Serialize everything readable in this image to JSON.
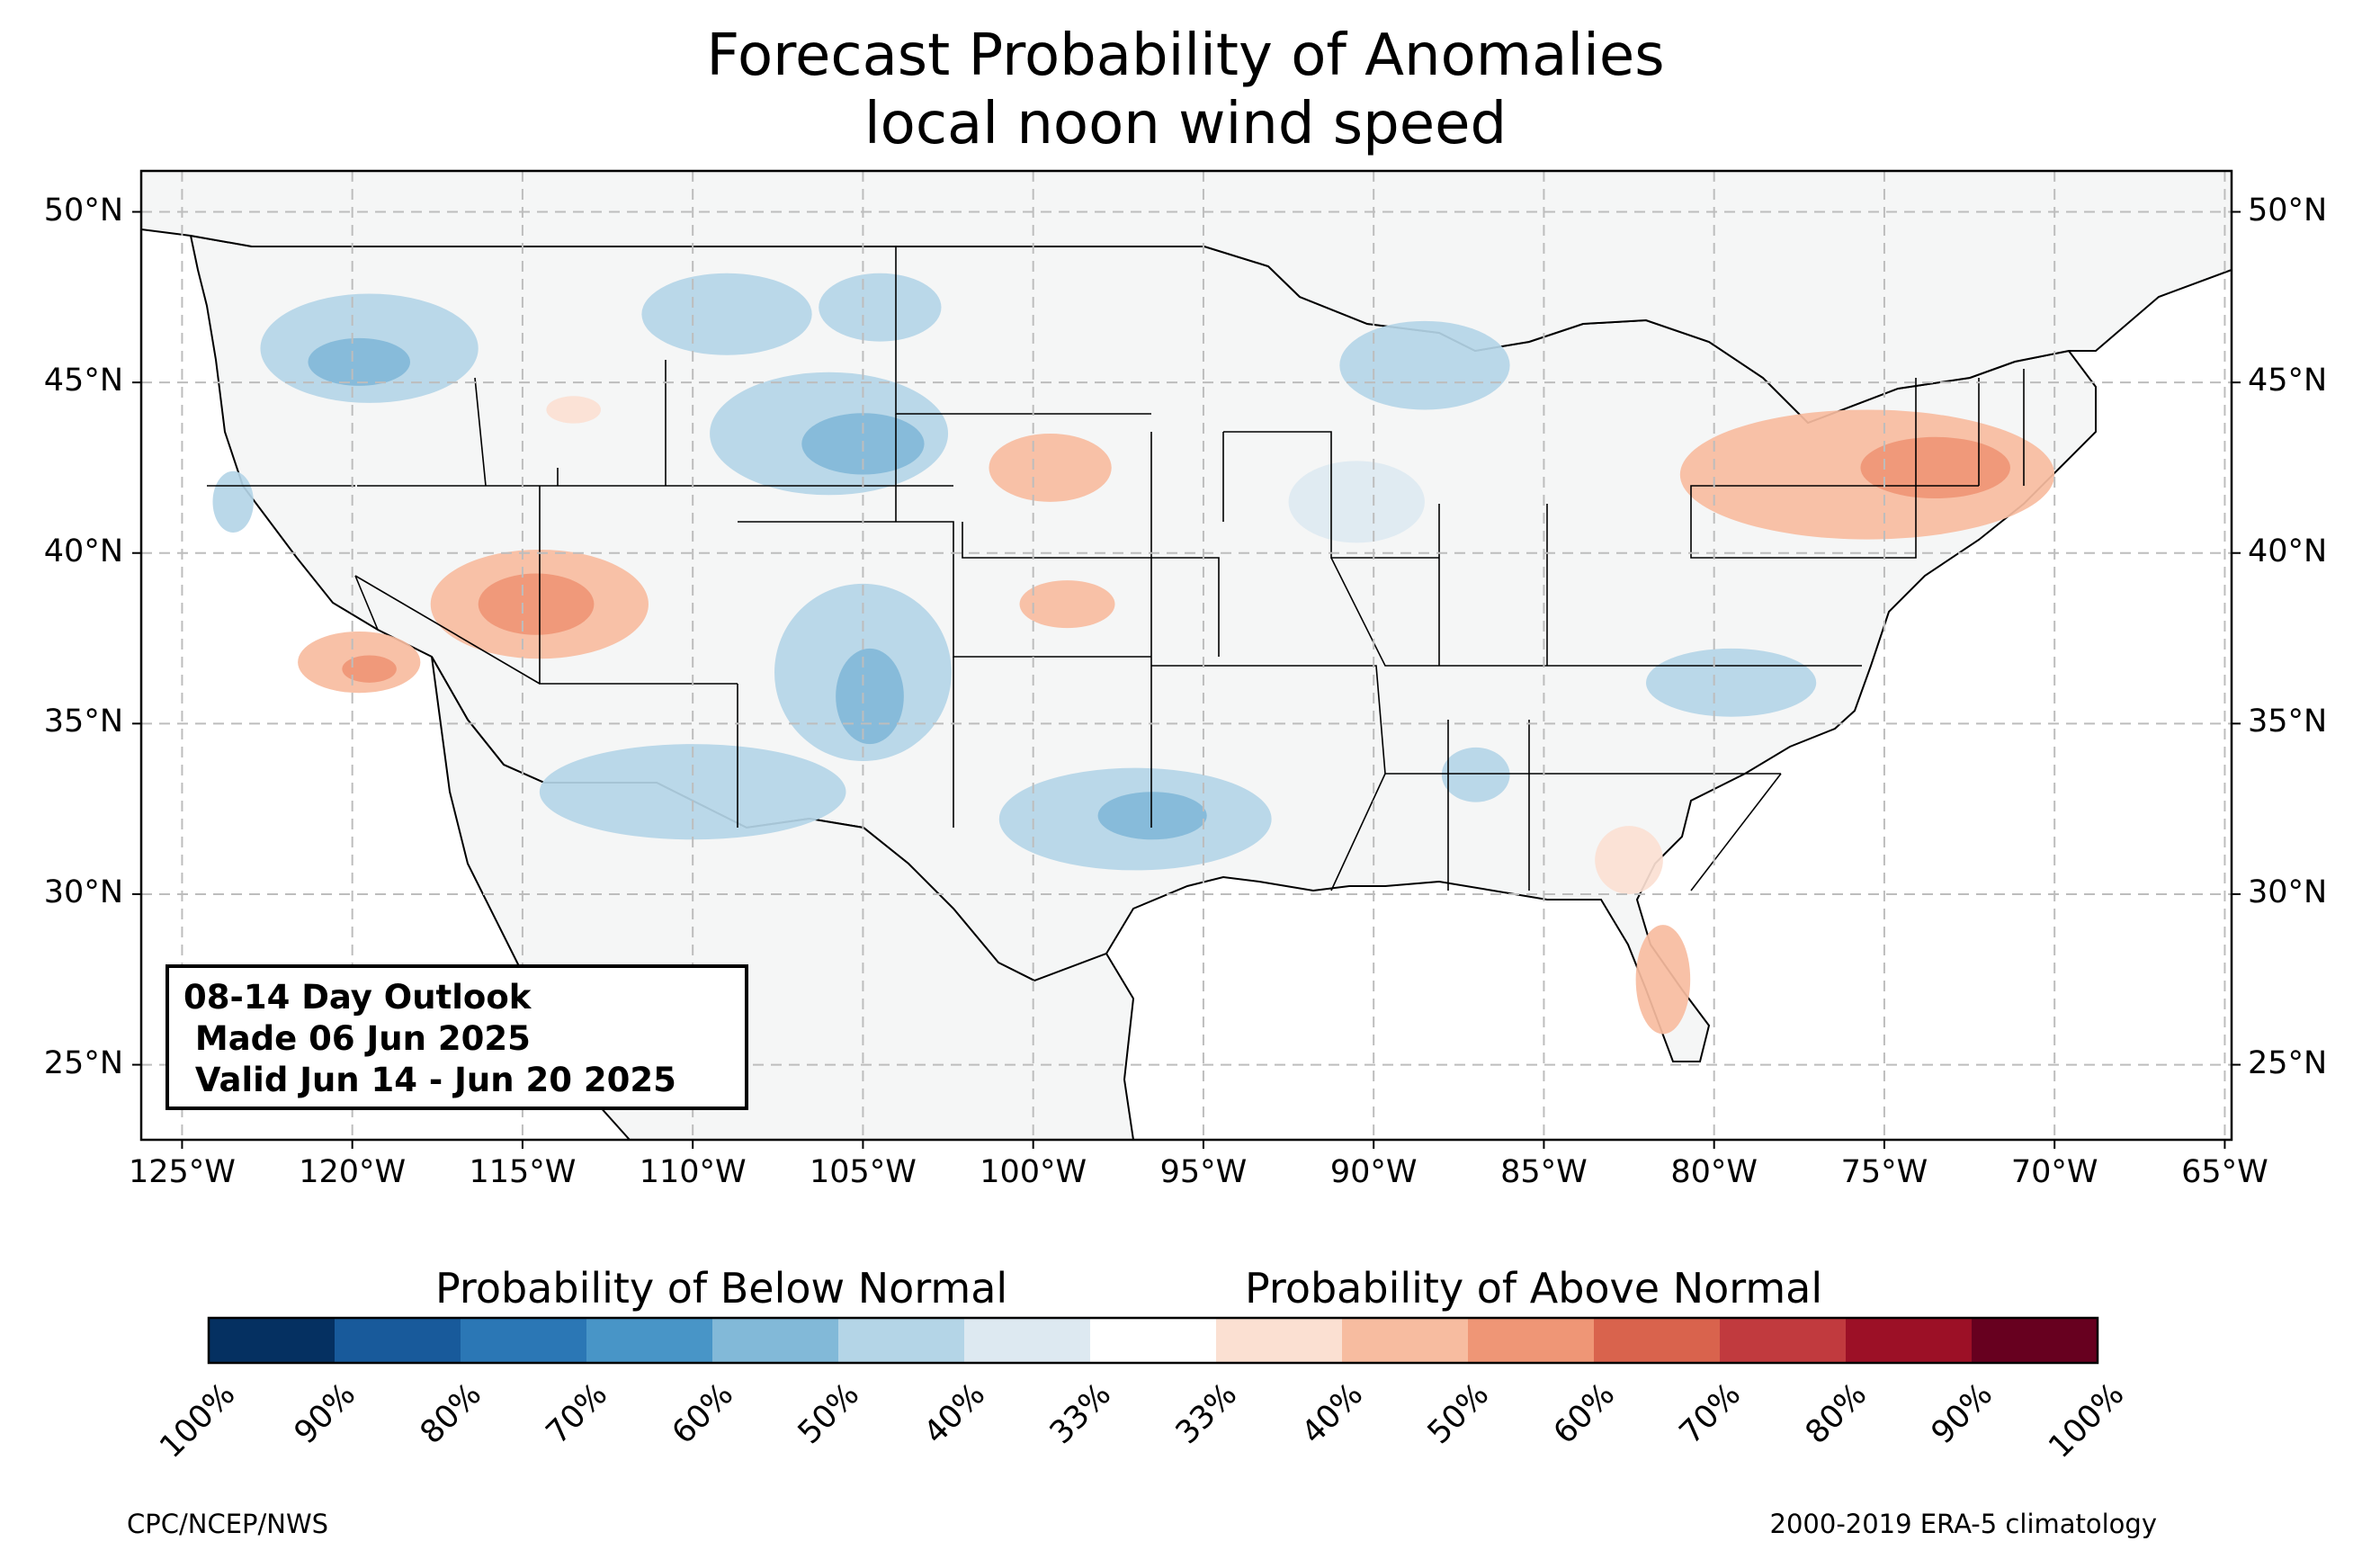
{
  "title": "Forecast Probability of Anomalies",
  "subtitle": "local noon wind speed",
  "map": {
    "lat_labels": [
      "50°N",
      "45°N",
      "40°N",
      "35°N",
      "30°N",
      "25°N"
    ],
    "lat_values": [
      50,
      45,
      40,
      35,
      30,
      25
    ],
    "lon_labels": [
      "125°W",
      "120°W",
      "115°W",
      "110°W",
      "105°W",
      "100°W",
      "95°W",
      "90°W",
      "85°W",
      "80°W",
      "75°W",
      "70°W",
      "65°W"
    ],
    "lon_values": [
      -125,
      -120,
      -115,
      -110,
      -105,
      -100,
      -95,
      -90,
      -85,
      -80,
      -75,
      -70,
      -65
    ],
    "extent": {
      "lon": [
        -126.2,
        -64.8
      ],
      "lat": [
        22.8,
        51.2
      ]
    },
    "land_color": "#f5f6f6",
    "regions": [
      {
        "name": "below-nw-idaho-montana",
        "category": "below",
        "level": 1,
        "lon": -119.5,
        "lat": 46.0,
        "rlon": 3.2,
        "rlat": 1.6
      },
      {
        "name": "below-nw-core",
        "category": "below",
        "level": 2,
        "lon": -119.8,
        "lat": 45.6,
        "rlon": 1.5,
        "rlat": 0.7
      },
      {
        "name": "below-montana-north",
        "category": "below",
        "level": 1,
        "lon": -109.0,
        "lat": 47.0,
        "rlon": 2.5,
        "rlat": 1.2
      },
      {
        "name": "below-montana-ne",
        "category": "below",
        "level": 1,
        "lon": -104.5,
        "lat": 47.2,
        "rlon": 1.8,
        "rlat": 1.0
      },
      {
        "name": "below-wyoming-sd",
        "category": "below",
        "level": 1,
        "lon": -106.0,
        "lat": 43.5,
        "rlon": 3.5,
        "rlat": 1.8
      },
      {
        "name": "below-wyoming-sd-core",
        "category": "below",
        "level": 2,
        "lon": -105.0,
        "lat": 43.2,
        "rlon": 1.8,
        "rlat": 0.9
      },
      {
        "name": "below-colorado",
        "category": "below",
        "level": 1,
        "lon": -105.0,
        "lat": 36.5,
        "rlon": 2.6,
        "rlat": 2.6
      },
      {
        "name": "below-colorado-core",
        "category": "below",
        "level": 2,
        "lon": -104.8,
        "lat": 35.8,
        "rlon": 1.0,
        "rlat": 1.4
      },
      {
        "name": "below-arizona",
        "category": "below",
        "level": 1,
        "lon": -110.0,
        "lat": 33.0,
        "rlon": 4.5,
        "rlat": 1.4
      },
      {
        "name": "below-texas",
        "category": "below",
        "level": 1,
        "lon": -97.0,
        "lat": 32.2,
        "rlon": 4.0,
        "rlat": 1.5
      },
      {
        "name": "below-texas-core",
        "category": "below",
        "level": 2,
        "lon": -96.5,
        "lat": 32.3,
        "rlon": 1.6,
        "rlat": 0.7
      },
      {
        "name": "below-wisconsin",
        "category": "below",
        "level": 1,
        "lon": -88.5,
        "lat": 45.5,
        "rlon": 2.5,
        "rlat": 1.3
      },
      {
        "name": "below-iowa-illinois",
        "category": "below",
        "level": 0,
        "lon": -90.5,
        "lat": 41.5,
        "rlon": 2.0,
        "rlat": 1.2
      },
      {
        "name": "below-alabama",
        "category": "below",
        "level": 1,
        "lon": -87.0,
        "lat": 33.5,
        "rlon": 1.0,
        "rlat": 0.8
      },
      {
        "name": "below-virginia-nc",
        "category": "below",
        "level": 1,
        "lon": -79.5,
        "lat": 36.2,
        "rlon": 2.5,
        "rlat": 1.0
      },
      {
        "name": "below-california-coast",
        "category": "below",
        "level": 1,
        "lon": -123.5,
        "lat": 41.5,
        "rlon": 0.6,
        "rlat": 0.9
      },
      {
        "name": "above-nevada-utah",
        "category": "above",
        "level": 1,
        "lon": -114.5,
        "lat": 38.5,
        "rlon": 3.2,
        "rlat": 1.6
      },
      {
        "name": "above-nevada-utah-core",
        "category": "above",
        "level": 2,
        "lon": -114.6,
        "lat": 38.5,
        "rlon": 1.7,
        "rlat": 0.9
      },
      {
        "name": "above-california",
        "category": "above",
        "level": 1,
        "lon": -119.8,
        "lat": 36.8,
        "rlon": 1.8,
        "rlat": 0.9
      },
      {
        "name": "above-california-core",
        "category": "above",
        "level": 2,
        "lon": -119.5,
        "lat": 36.6,
        "rlon": 0.8,
        "rlat": 0.4
      },
      {
        "name": "above-nebraska",
        "category": "above",
        "level": 1,
        "lon": -99.5,
        "lat": 42.5,
        "rlon": 1.8,
        "rlat": 1.0
      },
      {
        "name": "above-kansas",
        "category": "above",
        "level": 1,
        "lon": -99.0,
        "lat": 38.5,
        "rlon": 1.4,
        "rlat": 0.7
      },
      {
        "name": "above-northeast",
        "category": "above",
        "level": 1,
        "lon": -75.5,
        "lat": 42.3,
        "rlon": 5.5,
        "rlat": 1.9
      },
      {
        "name": "above-northeast-core",
        "category": "above",
        "level": 2,
        "lon": -73.5,
        "lat": 42.5,
        "rlon": 2.2,
        "rlat": 0.9
      },
      {
        "name": "above-florida",
        "category": "above",
        "level": 1,
        "lon": -81.5,
        "lat": 27.5,
        "rlon": 0.8,
        "rlat": 1.6
      },
      {
        "name": "above-georgia",
        "category": "above",
        "level": 0,
        "lon": -82.5,
        "lat": 31.0,
        "rlon": 1.0,
        "rlat": 1.0
      },
      {
        "name": "above-idaho-wyoming",
        "category": "above",
        "level": 0,
        "lon": -113.5,
        "lat": 44.2,
        "rlon": 0.8,
        "rlat": 0.4
      }
    ]
  },
  "info_box": {
    "line1": "08-14 Day Outlook",
    "line2": " Made 06 Jun 2025",
    "line3": " Valid Jun 14 - Jun 20 2025"
  },
  "colorbar": {
    "below_heading": "Probability of Below Normal",
    "above_heading": "Probability of Above Normal",
    "tick_labels": [
      "100%",
      "90%",
      "80%",
      "70%",
      "60%",
      "50%",
      "40%",
      "33%",
      "33%",
      "40%",
      "50%",
      "60%",
      "70%",
      "80%",
      "90%",
      "100%"
    ],
    "colors": [
      "#053061",
      "#185a9b",
      "#2b77b5",
      "#4895c7",
      "#82b9d8",
      "#b4d5e7",
      "#dde9f1",
      "#ffffff",
      "#fbe0d2",
      "#f7bca0",
      "#ef9676",
      "#d9634d",
      "#c13a3e",
      "#9c1026",
      "#67001f"
    ]
  },
  "footer_left": "CPC/NCEP/NWS",
  "footer_right": "2000-2019 ERA-5 climatology"
}
